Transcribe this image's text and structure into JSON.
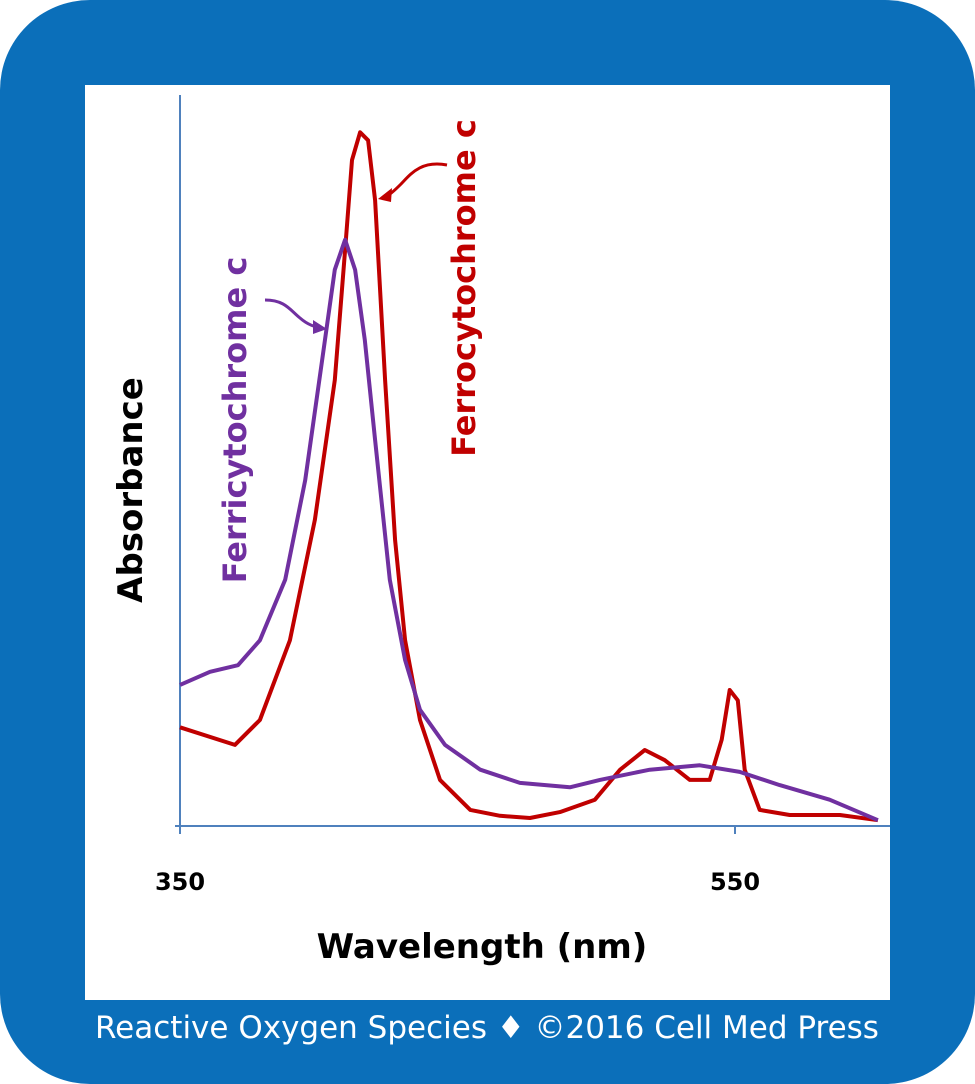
{
  "chart_data": {
    "type": "line",
    "x_label": "Wavelength (nm)",
    "y_label": "Absorbance",
    "footer": "Reactive Oxygen Species ♦ ©2016 Cell Med Press",
    "xlim": [
      350,
      606
    ],
    "xticks": [
      350,
      550
    ],
    "ylim": [
      0,
      1
    ],
    "series": [
      {
        "name": "Ferrocytochrome c",
        "color": "#c00000",
        "x": [
          350,
          369.8,
          378.8,
          389.6,
          398.6,
          405.8,
          409.5,
          412,
          414.9,
          417.8,
          420.3,
          423.9,
          427.5,
          431.1,
          436.5,
          443.7,
          454.6,
          465.3,
          476.1,
          486.9,
          499.5,
          508.6,
          517.5,
          524.7,
          533.7,
          540.9,
          545.2,
          548.1,
          551,
          553.5,
          558.9,
          569.7,
          587.8,
          601.5
        ],
        "values": [
          0.135,
          0.111,
          0.145,
          0.254,
          0.419,
          0.61,
          0.788,
          0.911,
          0.949,
          0.938,
          0.856,
          0.61,
          0.391,
          0.254,
          0.145,
          0.063,
          0.022,
          0.014,
          0.011,
          0.019,
          0.036,
          0.077,
          0.104,
          0.09,
          0.063,
          0.063,
          0.118,
          0.186,
          0.172,
          0.077,
          0.022,
          0.015,
          0.015,
          0.008
        ]
      },
      {
        "name": "Ferricytochrome c",
        "color": "#7030a0",
        "x": [
          350,
          360.8,
          370.9,
          378.8,
          387.9,
          395.1,
          401.2,
          405.8,
          409.5,
          413.1,
          416.6,
          420.3,
          425.6,
          431.1,
          436.5,
          445.5,
          458.2,
          472.5,
          490.5,
          501.3,
          519.3,
          537.3,
          551.7,
          566.1,
          584.1,
          601.5
        ],
        "values": [
          0.193,
          0.211,
          0.22,
          0.254,
          0.337,
          0.473,
          0.637,
          0.761,
          0.802,
          0.761,
          0.665,
          0.528,
          0.337,
          0.227,
          0.159,
          0.111,
          0.077,
          0.059,
          0.053,
          0.063,
          0.077,
          0.083,
          0.074,
          0.056,
          0.036,
          0.008
        ]
      }
    ]
  }
}
